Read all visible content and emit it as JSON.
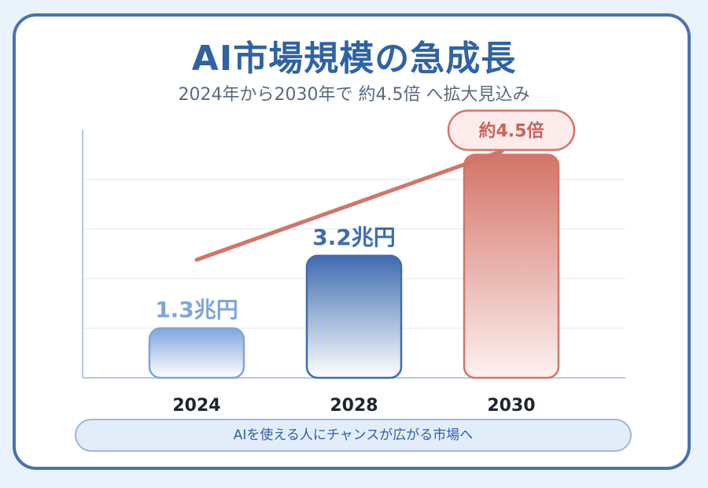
{
  "title": "AI市場規模の急成長",
  "subtitle": "2024年から2030年で 約4.5倍 へ拡大見込み",
  "footer": "AIを使える人にチャンスが広がる市場へ",
  "colors": {
    "accent_blue": "#2f63a3",
    "bar_blue_light": "#7fa6dc",
    "bar_blue_dark": "#3e6cb0",
    "accent_red": "#d47468"
  },
  "chart_data": {
    "type": "bar",
    "categories": [
      "2024",
      "2028",
      "2030"
    ],
    "values": [
      1.3,
      3.2,
      5.85
    ],
    "data_labels": [
      "1.3兆円",
      "3.2兆円",
      ""
    ],
    "growth_badge": "約4.5倍",
    "trend_arrow": true,
    "ylim": [
      0,
      6.5
    ],
    "grid": true,
    "xlabel": "",
    "ylabel": ""
  }
}
